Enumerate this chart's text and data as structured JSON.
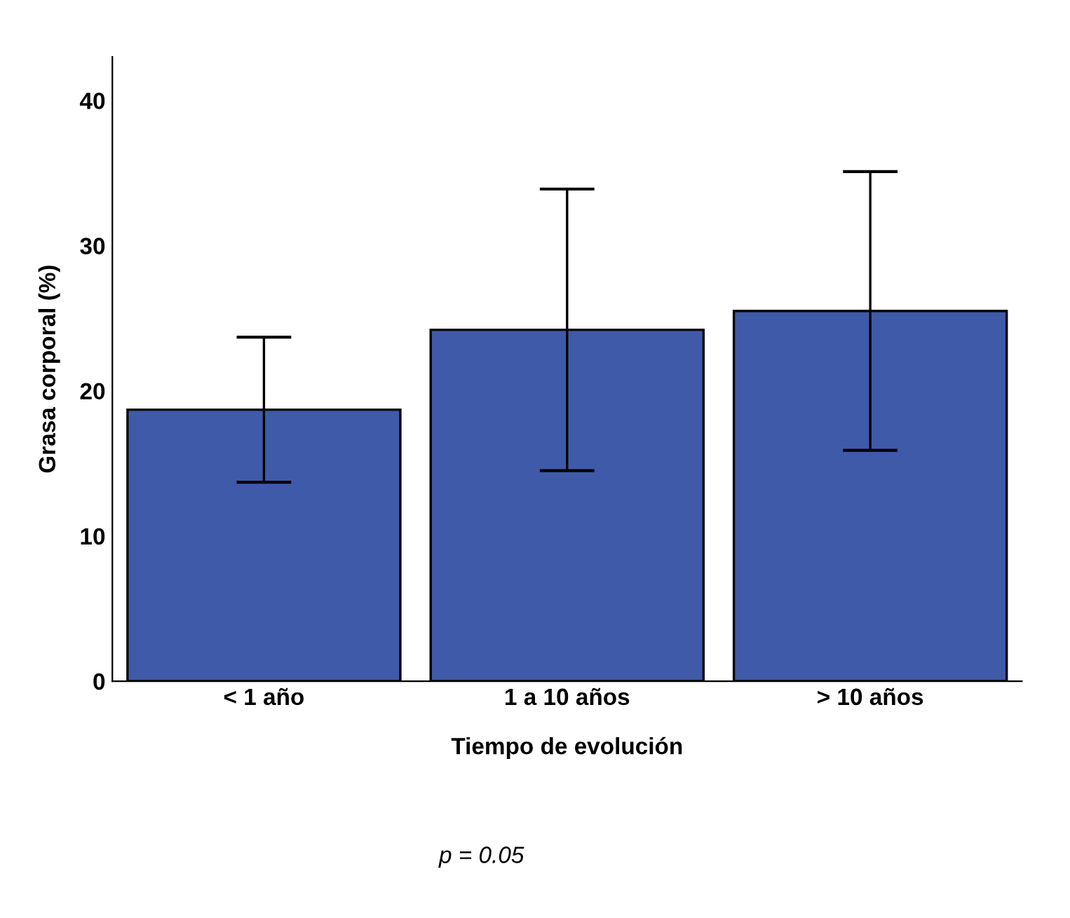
{
  "chart_data": {
    "type": "bar",
    "xlabel": "Tiempo de evolución",
    "ylabel": "Grasa corporal (%)",
    "categories": [
      "< 1 año",
      "1 a 10 años",
      "> 10 años"
    ],
    "values": [
      18.7,
      24.2,
      25.5
    ],
    "errors": [
      5.0,
      9.7,
      9.6
    ],
    "color": "#3f5aa8",
    "ylim": [
      0,
      43
    ],
    "yticks": [
      0,
      10,
      20,
      30,
      40
    ],
    "grid": false,
    "annotations": [
      "p = 0.05"
    ]
  }
}
